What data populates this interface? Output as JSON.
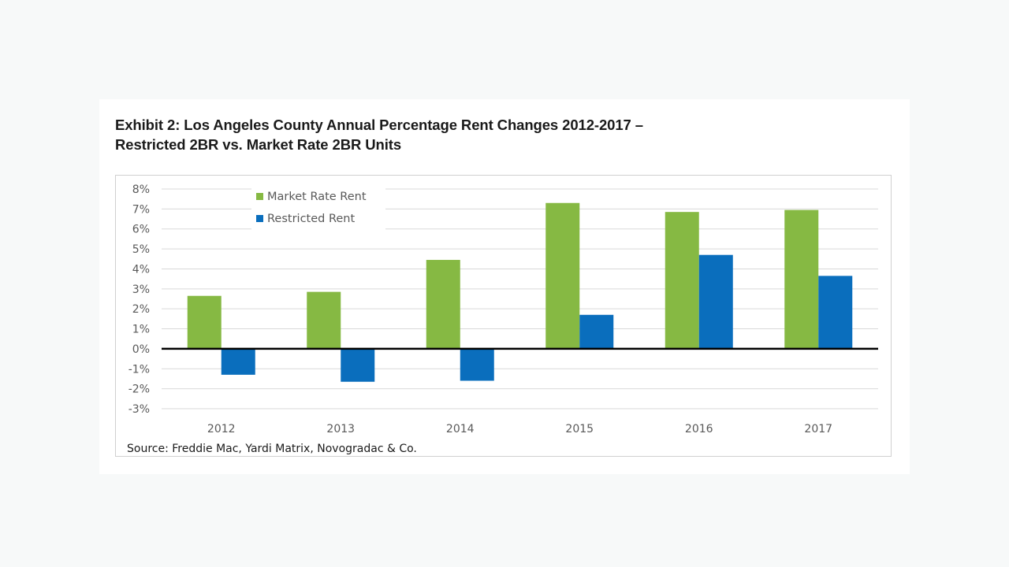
{
  "title_line1": "Exhibit 2: Los Angeles County Annual Percentage Rent Changes 2012-2017 –",
  "title_line2": "Restricted 2BR vs. Market Rate 2BR Units",
  "source": "Source: Freddie Mac, Yardi Matrix, Novogradac & Co.",
  "colors": {
    "market": "#86b943",
    "restricted": "#0a6ebd",
    "grid": "#d9d9d9",
    "zero_line": "#000000",
    "tick_text": "#595959"
  },
  "chart_data": {
    "type": "bar",
    "title": "Exhibit 2: Los Angeles County Annual Percentage Rent Changes 2012-2017 – Restricted 2BR vs. Market Rate 2BR Units",
    "xlabel": "",
    "ylabel": "",
    "categories": [
      "2012",
      "2013",
      "2014",
      "2015",
      "2016",
      "2017"
    ],
    "series": [
      {
        "name": "Market Rate Rent",
        "values": [
          2.65,
          2.85,
          4.45,
          7.3,
          6.85,
          6.95
        ]
      },
      {
        "name": "Restricted Rent",
        "values": [
          -1.3,
          -1.65,
          -1.6,
          1.7,
          4.7,
          3.65
        ]
      }
    ],
    "ylim": [
      -3,
      8
    ],
    "yticks": [
      8,
      7,
      6,
      5,
      4,
      3,
      2,
      1,
      0,
      -1,
      -2,
      -3
    ],
    "ytick_labels": [
      "8%",
      "7%",
      "6%",
      "5%",
      "4%",
      "3%",
      "2%",
      "1%",
      "0%",
      "-1%",
      "-2%",
      "-3%"
    ],
    "unit": "%",
    "grid": true,
    "legend_position": "top-left-inside",
    "annotation": "Source: Freddie Mac, Yardi Matrix, Novogradac & Co."
  }
}
